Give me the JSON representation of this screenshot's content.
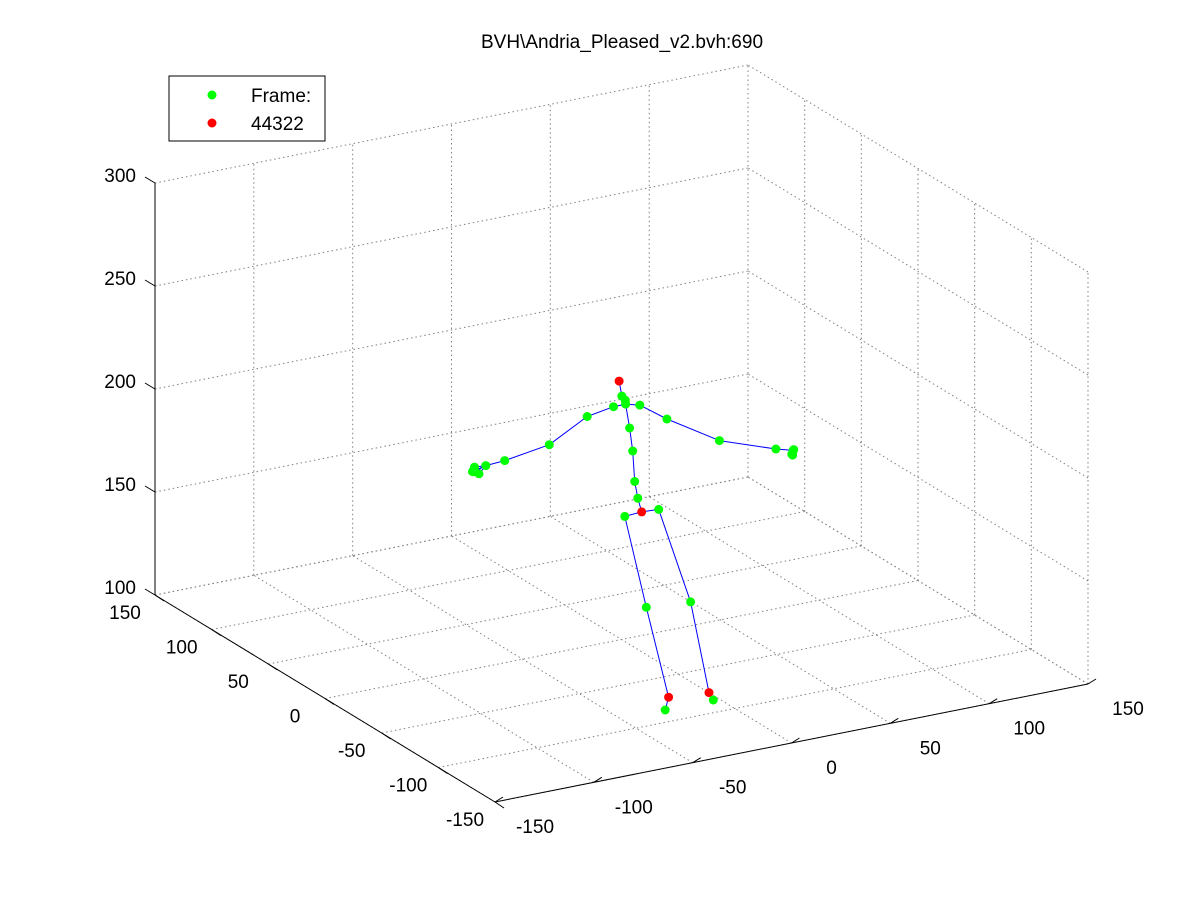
{
  "chart_data": {
    "type": "scatter3d",
    "title": "BVH\\Andria_Pleased_v2.bvh:690",
    "legend": {
      "placement": "top-left",
      "entries": [
        {
          "label": "Frame:",
          "color": "#00ff00"
        },
        {
          "label": "44322",
          "color": "#ff0000"
        }
      ]
    },
    "axes": {
      "x": {
        "ticks": [
          -150,
          -100,
          -50,
          0,
          50,
          100,
          150
        ],
        "labels": [
          "-150",
          "-100",
          "-50",
          "0",
          "50",
          "100",
          "150"
        ],
        "range": [
          -150,
          150
        ]
      },
      "y": {
        "ticks": [
          -150,
          -100,
          -50,
          0,
          50,
          100,
          150
        ],
        "labels": [
          "-150",
          "-100",
          "-50",
          "0",
          "50",
          "100",
          "150"
        ],
        "range": [
          -150,
          150
        ]
      },
      "z": {
        "ticks": [
          100,
          150,
          200,
          250,
          300
        ],
        "labels": [
          "100",
          "150",
          "200",
          "250",
          "300"
        ],
        "range": [
          100,
          300
        ]
      }
    },
    "grid": true,
    "colors": {
      "joint": "#00ff00",
      "end_site": "#ff0000",
      "bone": "#0000ff",
      "grid": "#808080",
      "axis": "#000000"
    },
    "joints": [
      {
        "id": "hips",
        "x": 67,
        "y": 99,
        "z": 116,
        "end": true
      },
      {
        "id": "lhip",
        "x": 59,
        "y": 100,
        "z": 115,
        "end": false
      },
      {
        "id": "lknee",
        "x": 67,
        "y": 95,
        "z": 71,
        "end": false
      },
      {
        "id": "lankle",
        "x": 76,
        "y": 91,
        "z": 27,
        "end": true
      },
      {
        "id": "ltoe",
        "x": 68,
        "y": 80,
        "z": 26,
        "end": false
      },
      {
        "id": "rhip",
        "x": 75,
        "y": 98,
        "z": 116,
        "end": false
      },
      {
        "id": "rknee",
        "x": 86,
        "y": 89,
        "z": 72,
        "end": false
      },
      {
        "id": "rankle",
        "x": 93,
        "y": 85,
        "z": 28,
        "end": true
      },
      {
        "id": "rtoe",
        "x": 90,
        "y": 76,
        "z": 28,
        "end": false
      },
      {
        "id": "spine1",
        "x": 65,
        "y": 99,
        "z": 123,
        "end": false
      },
      {
        "id": "spine2",
        "x": 64,
        "y": 100,
        "z": 131,
        "end": false
      },
      {
        "id": "spine3",
        "x": 63,
        "y": 100,
        "z": 146,
        "end": false
      },
      {
        "id": "chest",
        "x": 62,
        "y": 101,
        "z": 157,
        "end": false
      },
      {
        "id": "neck",
        "x": 60,
        "y": 101,
        "z": 169,
        "end": false
      },
      {
        "id": "neck2",
        "x": 61,
        "y": 103,
        "z": 170,
        "end": false
      },
      {
        "id": "head",
        "x": 61,
        "y": 106,
        "z": 171,
        "end": false
      },
      {
        "id": "headtop",
        "x": 59,
        "y": 105,
        "z": 179,
        "end": true
      },
      {
        "id": "lclav",
        "x": 55,
        "y": 103,
        "z": 168,
        "end": false
      },
      {
        "id": "lshoulder",
        "x": 44,
        "y": 107,
        "z": 164,
        "end": false
      },
      {
        "id": "lelbow",
        "x": 30,
        "y": 116,
        "z": 150,
        "end": false
      },
      {
        "id": "lwrist",
        "x": 12,
        "y": 124,
        "z": 143,
        "end": false
      },
      {
        "id": "lhand",
        "x": 3,
        "y": 125,
        "z": 142,
        "end": false
      },
      {
        "id": "lhand1",
        "x": -1,
        "y": 128,
        "z": 141,
        "end": false
      },
      {
        "id": "lhand2",
        "x": 0,
        "y": 130,
        "z": 138,
        "end": false
      },
      {
        "id": "lhand3",
        "x": -2,
        "y": 128,
        "z": 139,
        "end": false
      },
      {
        "id": "lhand4",
        "x": 1,
        "y": 132,
        "z": 137,
        "end": false
      },
      {
        "id": "lhand5",
        "x": 3,
        "y": 131,
        "z": 136,
        "end": false
      },
      {
        "id": "rclav",
        "x": 66,
        "y": 99,
        "z": 168,
        "end": false
      },
      {
        "id": "rshoulder",
        "x": 78,
        "y": 96,
        "z": 160,
        "end": false
      },
      {
        "id": "relbow",
        "x": 100,
        "y": 88,
        "z": 148,
        "end": false
      },
      {
        "id": "rwrist",
        "x": 124,
        "y": 80,
        "z": 142,
        "end": false
      },
      {
        "id": "rhand",
        "x": 131,
        "y": 77,
        "z": 141,
        "end": false
      },
      {
        "id": "rhand1",
        "x": 133,
        "y": 80,
        "z": 140,
        "end": false
      },
      {
        "id": "rhand2",
        "x": 132,
        "y": 80,
        "z": 138,
        "end": false
      },
      {
        "id": "rhand3",
        "x": 133,
        "y": 81,
        "z": 137,
        "end": false
      }
    ],
    "bones": [
      [
        "hips",
        "lhip"
      ],
      [
        "lhip",
        "lknee"
      ],
      [
        "lknee",
        "lankle"
      ],
      [
        "lankle",
        "ltoe"
      ],
      [
        "hips",
        "rhip"
      ],
      [
        "rhip",
        "rknee"
      ],
      [
        "rknee",
        "rankle"
      ],
      [
        "rankle",
        "rtoe"
      ],
      [
        "hips",
        "spine1"
      ],
      [
        "spine1",
        "spine2"
      ],
      [
        "spine2",
        "spine3"
      ],
      [
        "spine3",
        "chest"
      ],
      [
        "chest",
        "neck"
      ],
      [
        "neck",
        "neck2"
      ],
      [
        "neck2",
        "head"
      ],
      [
        "head",
        "headtop"
      ],
      [
        "neck",
        "lclav"
      ],
      [
        "lclav",
        "lshoulder"
      ],
      [
        "lshoulder",
        "lelbow"
      ],
      [
        "lelbow",
        "lwrist"
      ],
      [
        "lwrist",
        "lhand"
      ],
      [
        "lhand",
        "lhand1"
      ],
      [
        "lhand",
        "lhand2"
      ],
      [
        "lhand",
        "lhand3"
      ],
      [
        "lhand",
        "lhand4"
      ],
      [
        "lhand",
        "lhand5"
      ],
      [
        "neck",
        "rclav"
      ],
      [
        "rclav",
        "rshoulder"
      ],
      [
        "rshoulder",
        "relbow"
      ],
      [
        "relbow",
        "rwrist"
      ],
      [
        "rwrist",
        "rhand"
      ],
      [
        "rhand",
        "rhand1"
      ],
      [
        "rhand",
        "rhand2"
      ],
      [
        "rhand",
        "rhand3"
      ]
    ]
  }
}
